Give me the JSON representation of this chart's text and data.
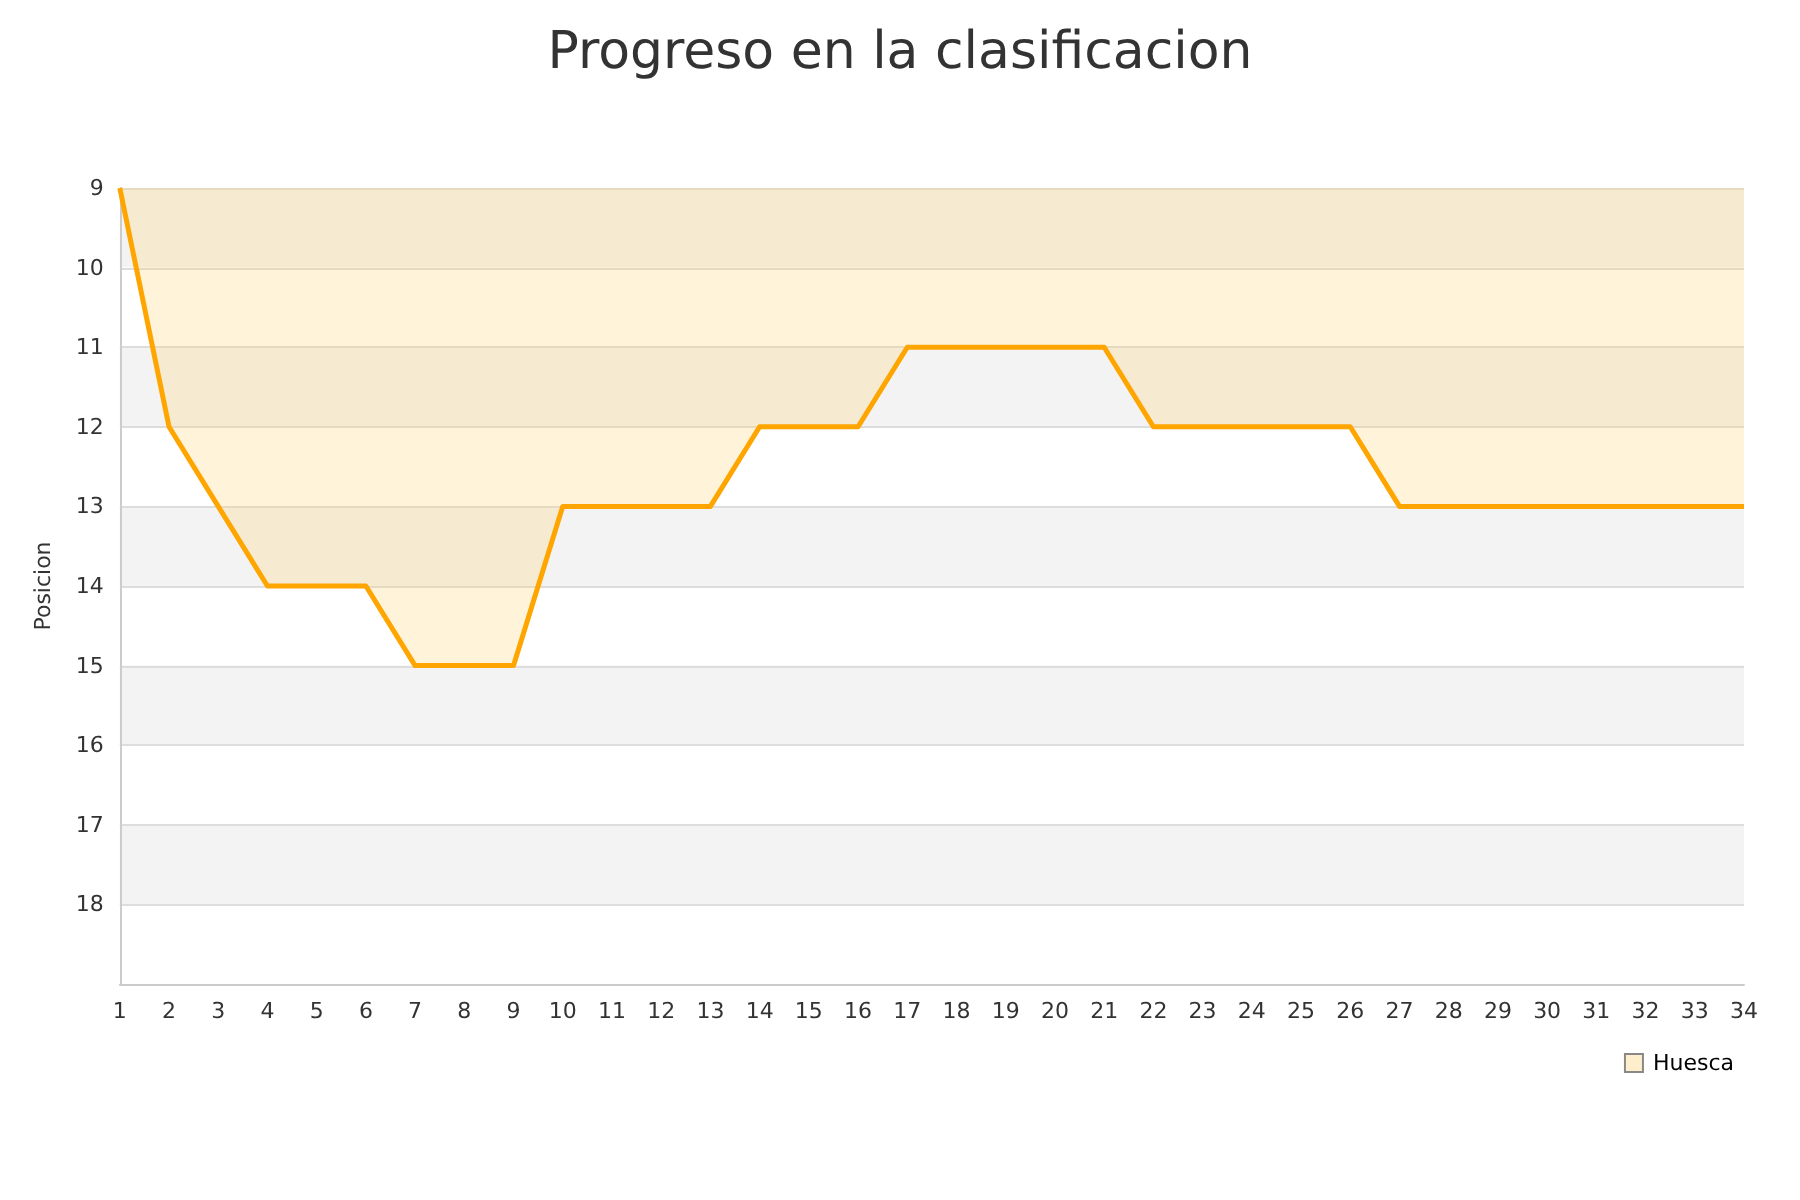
{
  "chart_data": {
    "type": "area",
    "title": "Progreso en la clasificacion",
    "ylabel": "Posicion",
    "x": [
      1,
      2,
      3,
      4,
      5,
      6,
      7,
      8,
      9,
      10,
      11,
      12,
      13,
      14,
      15,
      16,
      17,
      18,
      19,
      20,
      21,
      22,
      23,
      24,
      25,
      26,
      27,
      28,
      29,
      30,
      31,
      32,
      33,
      34
    ],
    "series": [
      {
        "name": "Huesca",
        "color": "#ffa500",
        "values": [
          9,
          12,
          13,
          14,
          14,
          14,
          15,
          15,
          15,
          13,
          13,
          13,
          13,
          12,
          12,
          12,
          11,
          11,
          11,
          11,
          11,
          12,
          12,
          12,
          12,
          12,
          13,
          13,
          13,
          13,
          13,
          13,
          13,
          13
        ]
      }
    ],
    "xlim": [
      1,
      34
    ],
    "xticks": [
      1,
      2,
      3,
      4,
      5,
      6,
      7,
      8,
      9,
      10,
      11,
      12,
      13,
      14,
      15,
      16,
      17,
      18,
      19,
      20,
      21,
      22,
      23,
      24,
      25,
      26,
      27,
      28,
      29,
      30,
      31,
      32,
      33,
      34
    ],
    "ylim": [
      19,
      9
    ],
    "yticks": [
      9,
      10,
      11,
      12,
      13,
      14,
      15,
      16,
      17,
      18,
      {
        "value": 19,
        "label": null
      }
    ],
    "grid": "y",
    "legend": "bottom right",
    "marker": "none",
    "line_style": "solid"
  }
}
